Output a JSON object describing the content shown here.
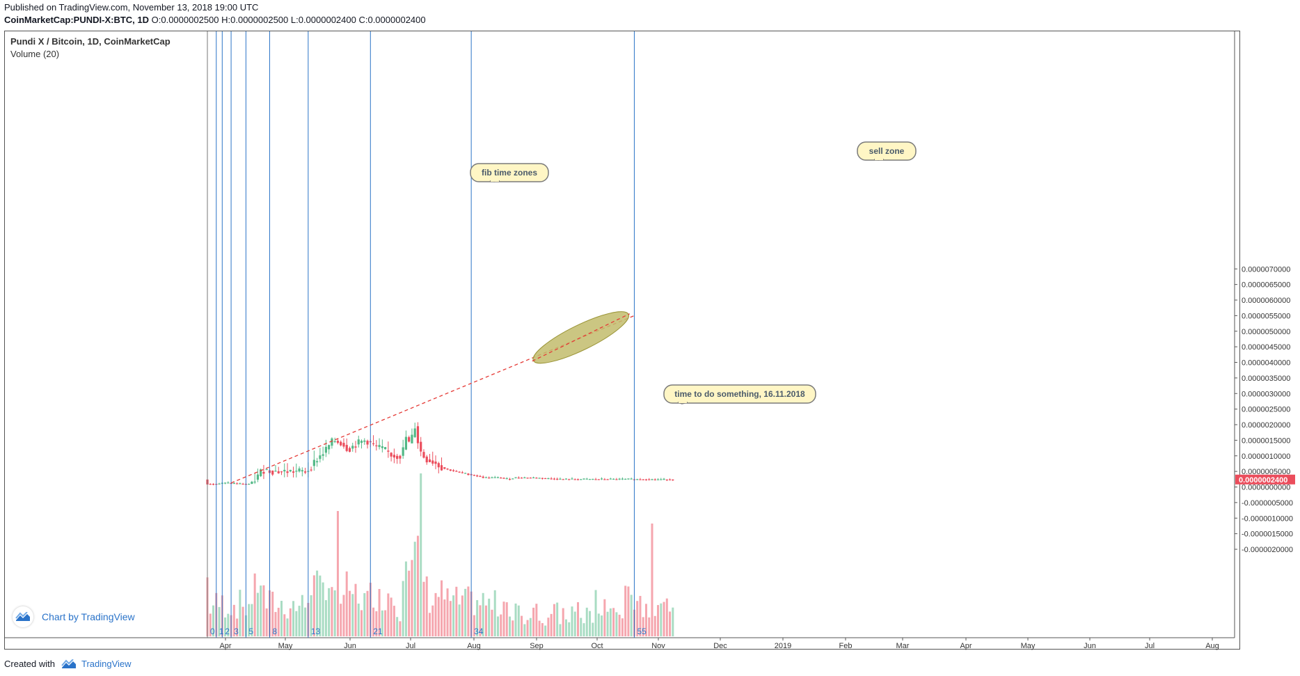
{
  "header": {
    "published": "Published on TradingView.com, November 13, 2018 19:00 UTC",
    "symbol": "CoinMarketCap:PUNDI-X:BTC, 1D",
    "ohlc": "O:0.0000002500 H:0.0000002500 L:0.0000002400 C:0.0000002400"
  },
  "legend": {
    "title": "Pundi X / Bitcoin, 1D, CoinMarketCap",
    "volume": "Volume (20)"
  },
  "branding": {
    "chart_by": "Chart by TradingView",
    "created_with": "Created with",
    "tradingview": "TradingView"
  },
  "colors": {
    "up": "#53b987",
    "down": "#eb4d5c",
    "vol_up": "#a9dcc3",
    "vol_down": "#f5a6ae",
    "fib_line": "#2a74c7",
    "trend_line": "#e53935",
    "callout_fill": "#fff6c5",
    "ellipse_fill": "#c2bc6c"
  },
  "chart_data": {
    "type": "candlestick",
    "title": "Pundi X / Bitcoin, 1D, CoinMarketCap",
    "x_ticks": [
      "Apr",
      "May",
      "Jun",
      "Jul",
      "Aug",
      "Sep",
      "Oct",
      "Nov",
      "Dec",
      "2019",
      "Feb",
      "Mar",
      "Apr",
      "May",
      "Jun",
      "Jul",
      "Aug"
    ],
    "y_ticks": [
      "0.0000070000",
      "0.0000065000",
      "0.0000060000",
      "0.0000055000",
      "0.0000050000",
      "0.0000045000",
      "0.0000040000",
      "0.0000035000",
      "0.0000030000",
      "0.0000025000",
      "0.0000020000",
      "0.0000015000",
      "0.0000010000",
      "0.0000005000",
      "0.0000000000",
      "-0.0000005000",
      "-0.0000010000",
      "-0.0000015000",
      "-0.0000020000"
    ],
    "y_tick_values": [
      7e-06,
      6.5e-06,
      6e-06,
      5.5e-06,
      5e-06,
      4.5e-06,
      4e-06,
      3.5e-06,
      3e-06,
      2.5e-06,
      2e-06,
      1.5e-06,
      1e-06,
      5e-07,
      0.0,
      -5e-07,
      -1e-06,
      -1.5e-06,
      -2e-06
    ],
    "last_price_label": "0.0000002400",
    "last_price": 2.4e-07,
    "price_path": [
      [
        0,
        1e-07
      ],
      [
        3,
        1e-07
      ],
      [
        7,
        1.3e-07
      ],
      [
        12,
        1e-07
      ],
      [
        15,
        1e-07
      ],
      [
        17,
        2.8e-07
      ],
      [
        19,
        5.5e-07
      ],
      [
        24,
        5e-07
      ],
      [
        30,
        5e-07
      ],
      [
        34,
        5e-07
      ],
      [
        37,
        8.5e-07
      ],
      [
        40,
        1.15e-06
      ],
      [
        43,
        1.5e-06
      ],
      [
        46,
        1.4e-06
      ],
      [
        48,
        1.2e-06
      ],
      [
        51,
        1.4e-06
      ],
      [
        54,
        1.5e-06
      ],
      [
        57,
        1.3e-06
      ],
      [
        60,
        1.2e-06
      ],
      [
        63,
        1e-06
      ],
      [
        66,
        1e-06
      ],
      [
        68,
        1.8e-06
      ],
      [
        69,
        1e-06
      ],
      [
        70,
        2.2e-06
      ],
      [
        72,
        1.2e-06
      ],
      [
        74,
        9e-07
      ],
      [
        77,
        8e-07
      ],
      [
        80,
        6e-07
      ],
      [
        84,
        5e-07
      ],
      [
        89,
        4e-07
      ],
      [
        94,
        3e-07
      ],
      [
        99,
        3e-07
      ],
      [
        102,
        2.5e-07
      ],
      [
        104,
        3e-07
      ],
      [
        110,
        3e-07
      ],
      [
        120,
        2.5e-07
      ],
      [
        140,
        2.5e-07
      ],
      [
        157,
        2.4e-07
      ]
    ],
    "volume_spikes": [
      {
        "day": 44,
        "value": 1.0
      },
      {
        "day": 72,
        "value": 1.3
      },
      {
        "day": 150,
        "value": 0.9
      }
    ],
    "fib_time_zone_labels": [
      "0",
      "1",
      "2",
      "3",
      "5",
      "8",
      "13",
      "21",
      "34",
      "55"
    ],
    "fib_time_zone_days": [
      0,
      3,
      5,
      8,
      13,
      21,
      34,
      55,
      89,
      144
    ],
    "trend_line": {
      "start_day": 8,
      "start_price": 1.3e-07,
      "end_day": 144,
      "end_price": 5.5e-06
    },
    "sell_zone": {
      "center_day": 126,
      "center_price": 4.8e-06
    },
    "annotations": [
      {
        "text": "fib time zones"
      },
      {
        "text": "sell zone"
      },
      {
        "text": "time to do something, 16.11.2018"
      }
    ]
  }
}
